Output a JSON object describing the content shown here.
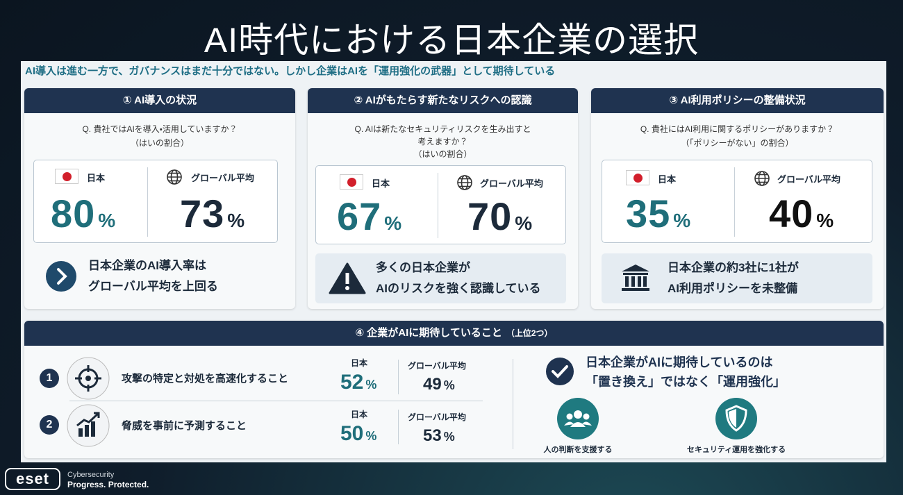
{
  "header": {
    "title": "AI時代における日本企業の選択",
    "subtitle": "AI導入は進む一方で、ガバナンスはまだ十分ではない。しかし企業はAIを「運用強化の武器」として期待している"
  },
  "cards": [
    {
      "heading": "① AI導入の状況",
      "question": [
        "Q. 貴社ではAIを導入・活用していますか？",
        "（はいの割合）"
      ],
      "stats": [
        {
          "label": "日本",
          "value": 80,
          "unit": "%"
        },
        {
          "label": "グローバル平均",
          "value": 73,
          "unit": "%"
        }
      ],
      "conclusion": [
        "日本企業のAI導入率は",
        "グローバル平均を上回る"
      ]
    },
    {
      "heading": "② AIがもたらす新たなリスクへの認識",
      "question": [
        "Q. AIは新たなセキュリティリスクを生み出すと",
        "考えますか？",
        "（はいの割合）"
      ],
      "stats": [
        {
          "label": "日本",
          "value": 67,
          "unit": "%"
        },
        {
          "label": "グローバル平均",
          "value": 70,
          "unit": "%"
        }
      ],
      "conclusion": [
        "多くの日本企業が",
        "AIのリスクを強く認識している"
      ]
    },
    {
      "heading": "③ AI利用ポリシーの整備状況",
      "question": [
        "Q. 貴社にはAI利用に関するポリシーがありますか？",
        "（「ポリシーがない」の割合）"
      ],
      "stats": [
        {
          "label": "日本",
          "value": 35,
          "unit": "%"
        },
        {
          "label": "グローバル平均",
          "value": 40,
          "unit": "%"
        }
      ],
      "conclusion": [
        "日本企業の約3社に1社が",
        "AI利用ポリシーを未整備"
      ]
    }
  ],
  "expectations": {
    "heading": "④ 企業がAIに期待していること",
    "heading_note": "（上位2つ）",
    "items": [
      {
        "rank": 1,
        "text": "攻撃の特定と対処を高速化すること",
        "stats": [
          {
            "label": "日本",
            "value": 52,
            "unit": "%"
          },
          {
            "label": "グローバル平均",
            "value": 49,
            "unit": "%"
          }
        ]
      },
      {
        "rank": 2,
        "text": "脅威を事前に予測すること",
        "stats": [
          {
            "label": "日本",
            "value": 50,
            "unit": "%"
          },
          {
            "label": "グローバル平均",
            "value": 53,
            "unit": "%"
          }
        ]
      }
    ],
    "summary": [
      "日本企業がAIに期待しているのは",
      "「置き換え」ではなく「運用強化」"
    ],
    "icons": [
      {
        "label": "人の判断を支援する"
      },
      {
        "label": "セキュリティ運用を強化する"
      }
    ]
  },
  "footer": {
    "brand": "eset",
    "tagline": [
      "Cybersecurity",
      "Progress. Protected."
    ]
  }
}
